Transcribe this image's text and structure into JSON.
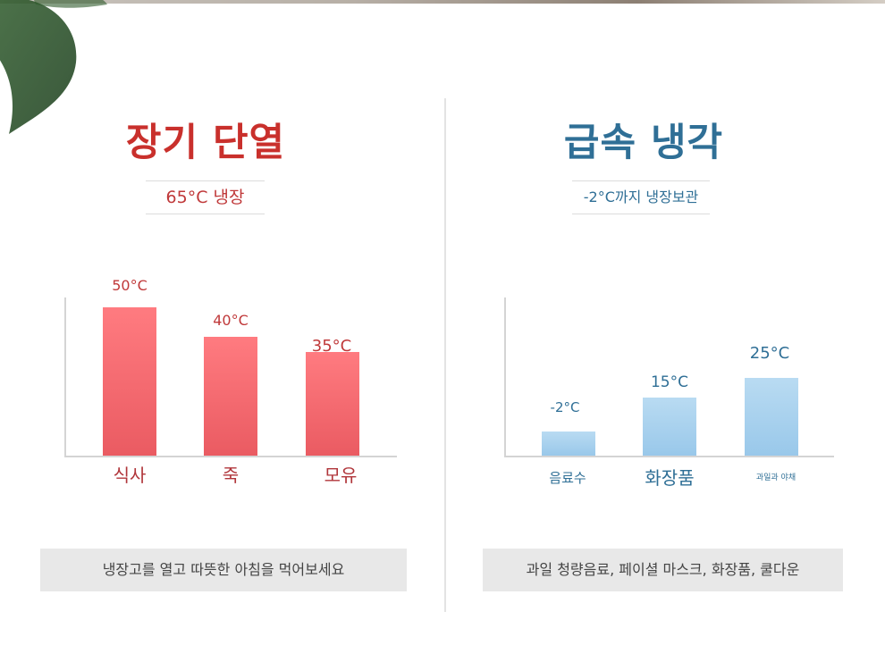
{
  "colors": {
    "red_accent": "#c9302c",
    "red_bar": "#f2666c",
    "blue_accent": "#2f6f96",
    "blue_bar": "#a9d1ee",
    "caption_bg": "#e8e8e8"
  },
  "left": {
    "title": "장기 단열",
    "subtitle": "65°C 냉장",
    "caption": "냉장고를 열고 따뜻한 아침을 먹어보세요"
  },
  "right": {
    "title": "급속 냉각",
    "subtitle": "-2°C까지 냉장보관",
    "caption": "과일 청량음료, 페이셜 마스크, 화장품, 쿨다운"
  },
  "chart_data": [
    {
      "type": "bar",
      "title": "장기 단열",
      "categories": [
        "식사",
        "죽",
        "모유"
      ],
      "values": [
        50,
        40,
        35
      ],
      "value_labels": [
        "50°C",
        "40°C",
        "35°C"
      ],
      "ylim": [
        0,
        50
      ],
      "grid": false,
      "color": "#f2666c"
    },
    {
      "type": "bar",
      "title": "급속 냉각",
      "categories": [
        "음료수",
        "화장품",
        "과일과 야채"
      ],
      "values": [
        -2,
        15,
        25
      ],
      "value_labels": [
        "-2°C",
        "15°C",
        "25°C"
      ],
      "ylim": [
        -14,
        60
      ],
      "grid": false,
      "color": "#a9d1ee"
    }
  ]
}
